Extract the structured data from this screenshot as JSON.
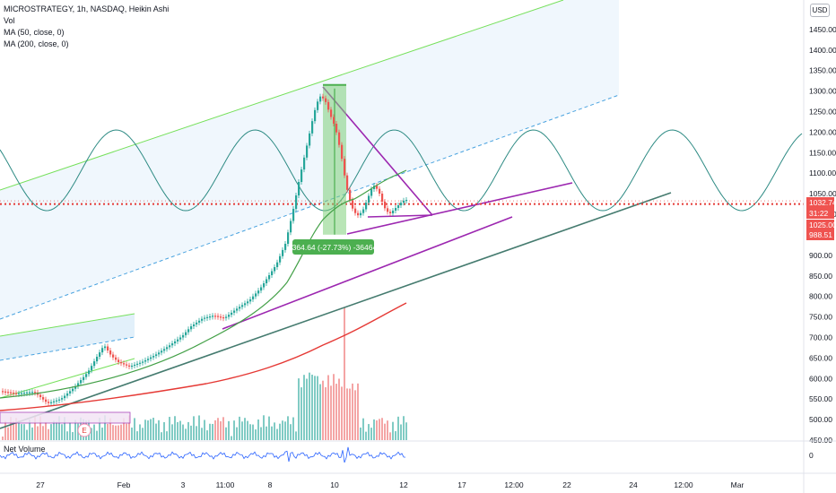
{
  "legend": {
    "symbol_line": "MICROSTRATEGY, 1h, NASDAQ, Heikin Ashi",
    "vol": "Vol",
    "ma50": "MA (50, close, 0)",
    "ma200": "MA (200, close, 0)"
  },
  "currency": "USD",
  "indicator": {
    "label": "Net Volume",
    "zero_label": "0"
  },
  "colors": {
    "up": "#26a69a",
    "down": "#ef5350",
    "vol_up": "#80cbc4",
    "vol_down": "#f4a5a5",
    "ma50": "#43a047",
    "ma200": "#e53935",
    "channel": "#76e05b",
    "channel_mid": "#4aa3df",
    "wave": "#2e8b84",
    "purple": "#9c27b0",
    "trend": "#457b6f",
    "support": "#e53935",
    "measure_fill": "#7fd07a",
    "measure_label": "#4caf50",
    "price_tag": "#ef5350"
  },
  "chart_data": {
    "type": "candlestick",
    "symbol": "MICROSTRATEGY",
    "interval": "1h",
    "exchange": "NASDAQ",
    "style": "Heikin Ashi",
    "ylim": [
      450,
      1500
    ],
    "y_ticks": [
      "1450.00",
      "1400.00",
      "1350.00",
      "1300.00",
      "1250.00",
      "1200.00",
      "1150.00",
      "1100.00",
      "1050.00",
      "1000.00",
      "950.00",
      "900.00",
      "850.00",
      "800.00",
      "750.00",
      "700.00",
      "650.00",
      "600.00",
      "550.00",
      "500.00",
      "450.00"
    ],
    "x_ticks": [
      "27",
      "Feb",
      "3",
      "11:00",
      "8",
      "10",
      "12",
      "17",
      "12:00",
      "22",
      "24",
      "12:00",
      "Mar"
    ],
    "price_tags": [
      {
        "label": "1032.74",
        "value": 1032.74
      },
      {
        "label": "31:22",
        "value": 1010
      },
      {
        "label": "1025.00",
        "value": 1025.0
      },
      {
        "label": "988.51",
        "value": 988.51
      }
    ],
    "support_level": 1025.0,
    "measure": {
      "label": "-364.64 (-27.73%) -36464",
      "from": 1314.97,
      "to": 950.33
    },
    "ma_lines": [
      "MA (50, close, 0)",
      "MA (200, close, 0)"
    ],
    "pattern_markers": [
      "E"
    ],
    "grid": false
  }
}
